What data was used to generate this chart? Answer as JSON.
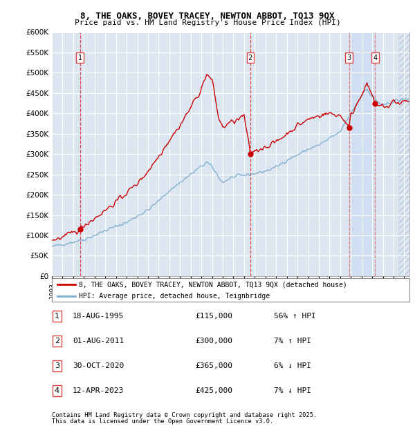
{
  "title1": "8, THE OAKS, BOVEY TRACEY, NEWTON ABBOT, TQ13 9QX",
  "title2": "Price paid vs. HM Land Registry's House Price Index (HPI)",
  "legend_line1": "8, THE OAKS, BOVEY TRACEY, NEWTON ABBOT, TQ13 9QX (detached house)",
  "legend_line2": "HPI: Average price, detached house, Teignbridge",
  "footer1": "Contains HM Land Registry data © Crown copyright and database right 2025.",
  "footer2": "This data is licensed under the Open Government Licence v3.0.",
  "transactions": [
    {
      "num": 1,
      "date": "18-AUG-1995",
      "price": 115000,
      "pct": "56%",
      "dir": "↑",
      "label": "HPI",
      "year": 1995.63
    },
    {
      "num": 2,
      "date": "01-AUG-2011",
      "price": 300000,
      "pct": "7%",
      "dir": "↑",
      "label": "HPI",
      "year": 2011.58
    },
    {
      "num": 3,
      "date": "30-OCT-2020",
      "price": 365000,
      "pct": "6%",
      "dir": "↓",
      "label": "HPI",
      "year": 2020.83
    },
    {
      "num": 4,
      "date": "12-APR-2023",
      "price": 425000,
      "pct": "7%",
      "dir": "↓",
      "label": "HPI",
      "year": 2023.28
    }
  ],
  "price_color": "#cc0000",
  "hpi_color": "#7aaacc",
  "bg_color": "#dce6f1",
  "shade_color": "#ccddf0",
  "grid_color": "#ffffff",
  "dashed_color": "#dd4444",
  "ylim_max": 600000,
  "xlim_start": 1993.0,
  "xlim_end": 2026.5
}
